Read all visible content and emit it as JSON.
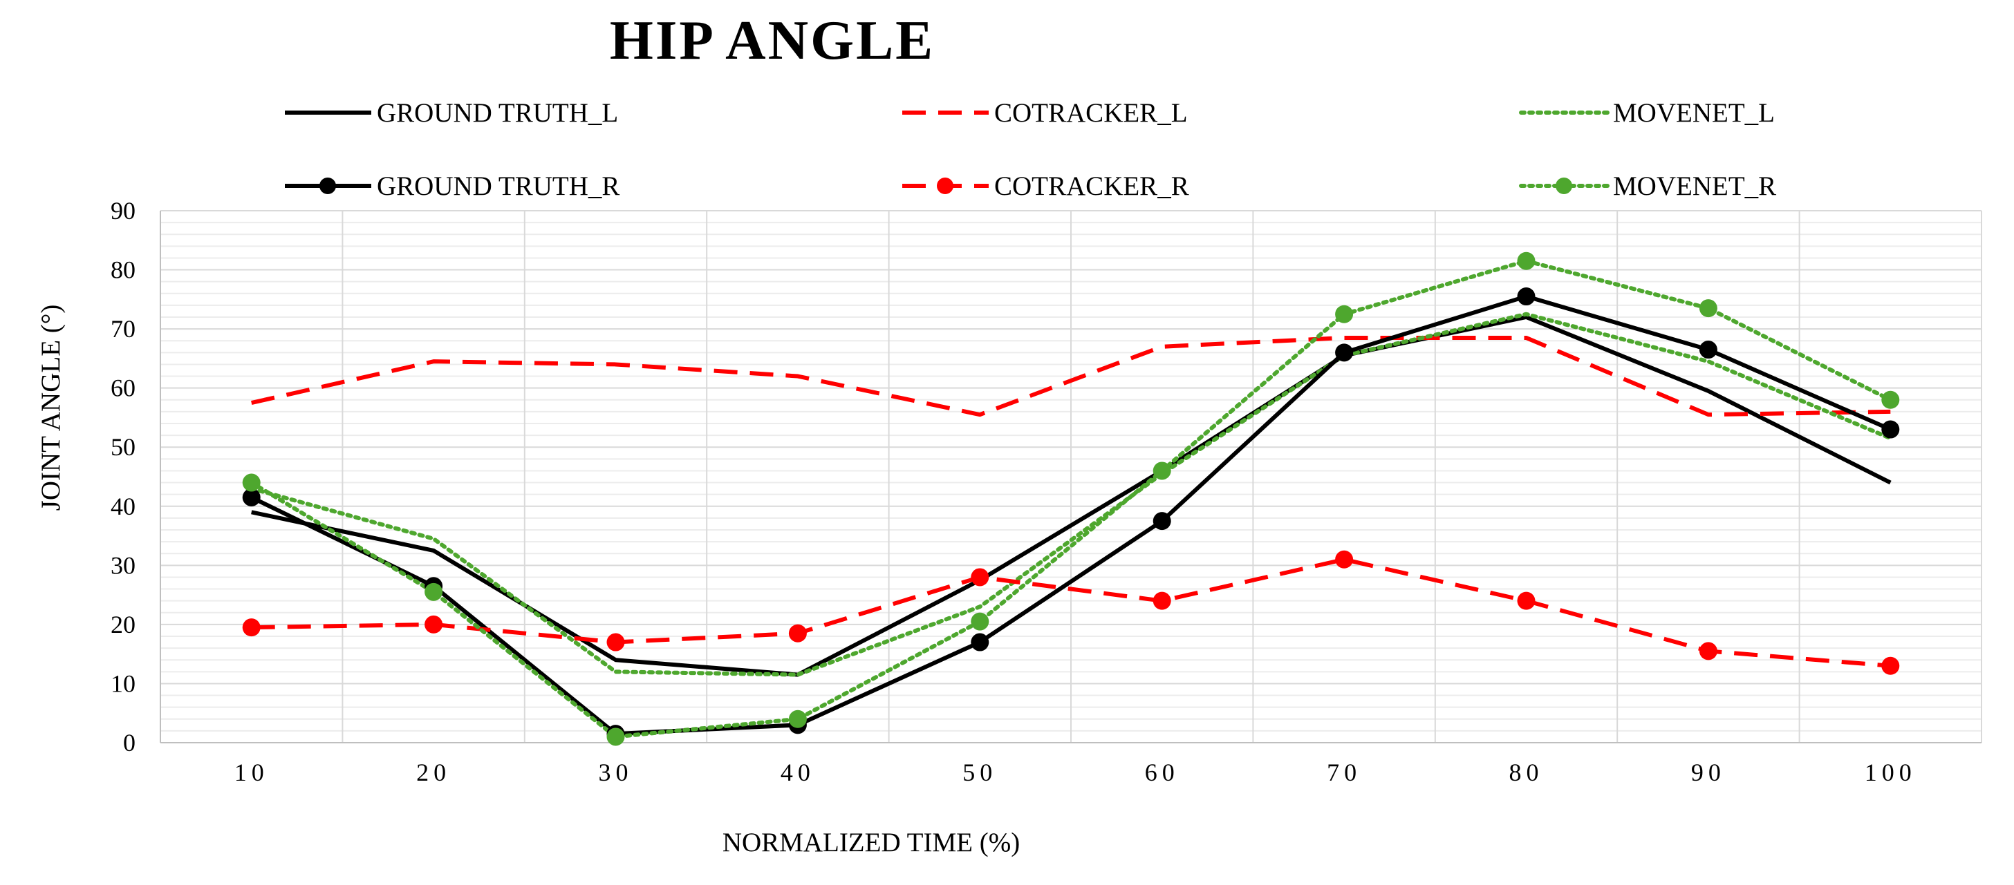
{
  "chart_data": {
    "type": "line",
    "title": "HIP ANGLE",
    "xlabel": "NORMALIZED TIME (%)",
    "ylabel": "JOINT ANGLE (°)",
    "categories": [
      "10",
      "20",
      "30",
      "40",
      "50",
      "60",
      "70",
      "80",
      "90",
      "100"
    ],
    "ylim": [
      0,
      90
    ],
    "yticks": [
      0,
      10,
      20,
      30,
      40,
      50,
      60,
      70,
      80,
      90
    ],
    "grid": true,
    "legend_position": "top",
    "series": [
      {
        "name": "GROUND TRUTH_L",
        "color": "#000000",
        "dash": "solid",
        "marker": "none",
        "values": [
          39,
          32.5,
          14,
          11.5,
          27.5,
          46,
          65.5,
          72,
          59.5,
          44
        ]
      },
      {
        "name": "COTRACKER_L",
        "color": "#ff0000",
        "dash": "dashed",
        "marker": "none",
        "values": [
          57.5,
          64.5,
          64,
          62,
          55.5,
          67,
          68.5,
          68.5,
          55.5,
          56
        ]
      },
      {
        "name": "MOVENET_L",
        "color": "#4ea72e",
        "dash": "dotted",
        "marker": "none",
        "values": [
          43,
          34.5,
          12,
          11.5,
          23,
          45.5,
          65.5,
          72.5,
          64.5,
          51.5
        ]
      },
      {
        "name": "GROUND TRUTH_R",
        "color": "#000000",
        "dash": "solid",
        "marker": "circle",
        "values": [
          41.5,
          26.5,
          1.5,
          3,
          17,
          37.5,
          66,
          75.5,
          66.5,
          53
        ]
      },
      {
        "name": "COTRACKER_R",
        "color": "#ff0000",
        "dash": "dashed",
        "marker": "circle",
        "values": [
          19.5,
          20,
          17,
          18.5,
          28,
          24,
          31,
          24,
          15.5,
          13
        ]
      },
      {
        "name": "MOVENET_R",
        "color": "#4ea72e",
        "dash": "dotted",
        "marker": "circle",
        "values": [
          44,
          25.5,
          1,
          4,
          20.5,
          46,
          72.5,
          81.5,
          73.5,
          58
        ]
      }
    ]
  }
}
